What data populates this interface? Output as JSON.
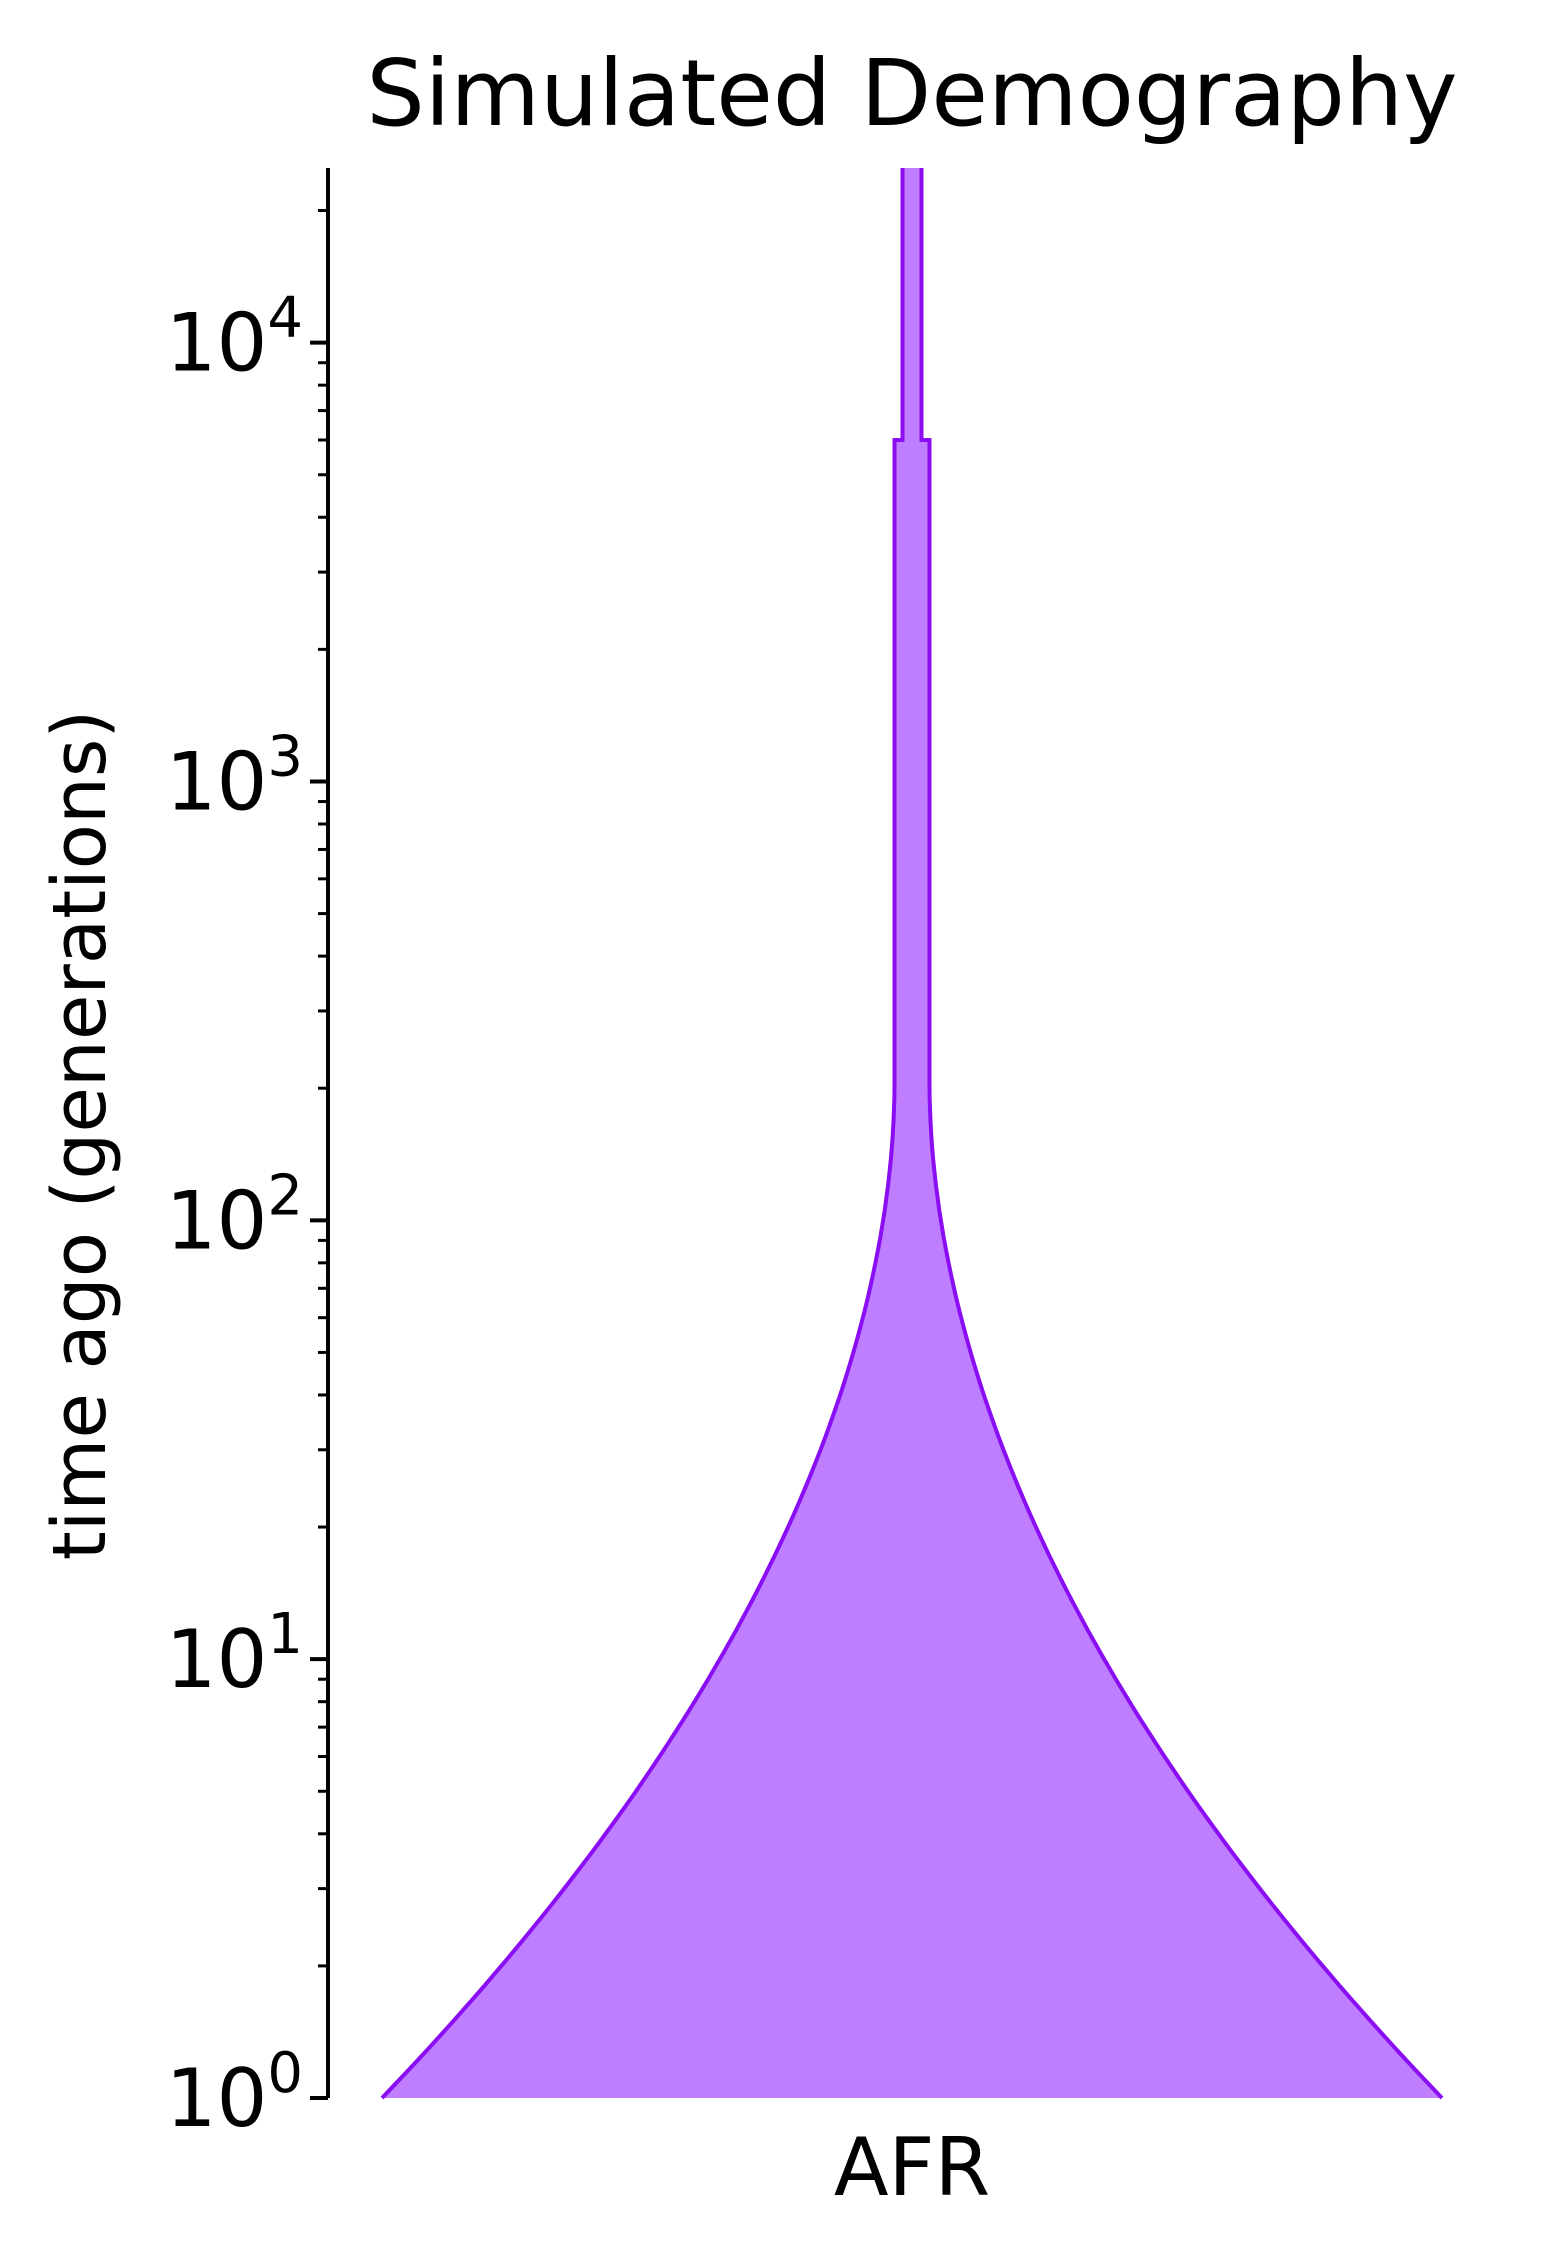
{
  "chart_data": {
    "type": "area",
    "title": "Simulated Demography",
    "ylabel": "time ago (generations)",
    "yscale": "log",
    "ylim": [
      1,
      25000
    ],
    "y_ticks": [
      {
        "base": "10",
        "exp": "0",
        "value": 1
      },
      {
        "base": "10",
        "exp": "1",
        "value": 10
      },
      {
        "base": "10",
        "exp": "2",
        "value": 100
      },
      {
        "base": "10",
        "exp": "3",
        "value": 1000
      },
      {
        "base": "10",
        "exp": "4",
        "value": 10000
      }
    ],
    "categories": [
      "AFR"
    ],
    "populations": [
      {
        "name": "AFR",
        "color": "#8a0df3",
        "fill_color": "#bf7dff",
        "epochs": [
          {
            "start_time": 1,
            "end_time": 205,
            "start_size": 1.0,
            "end_size": 0.033,
            "growth": "exponential"
          },
          {
            "start_time": 205,
            "end_time": 6000,
            "start_size": 0.033,
            "end_size": 0.033,
            "growth": "constant"
          },
          {
            "start_time": 6000,
            "end_time": 25000,
            "start_size": 0.018,
            "end_size": 0.018,
            "growth": "constant"
          }
        ]
      }
    ],
    "grid": false,
    "legend": "none"
  }
}
